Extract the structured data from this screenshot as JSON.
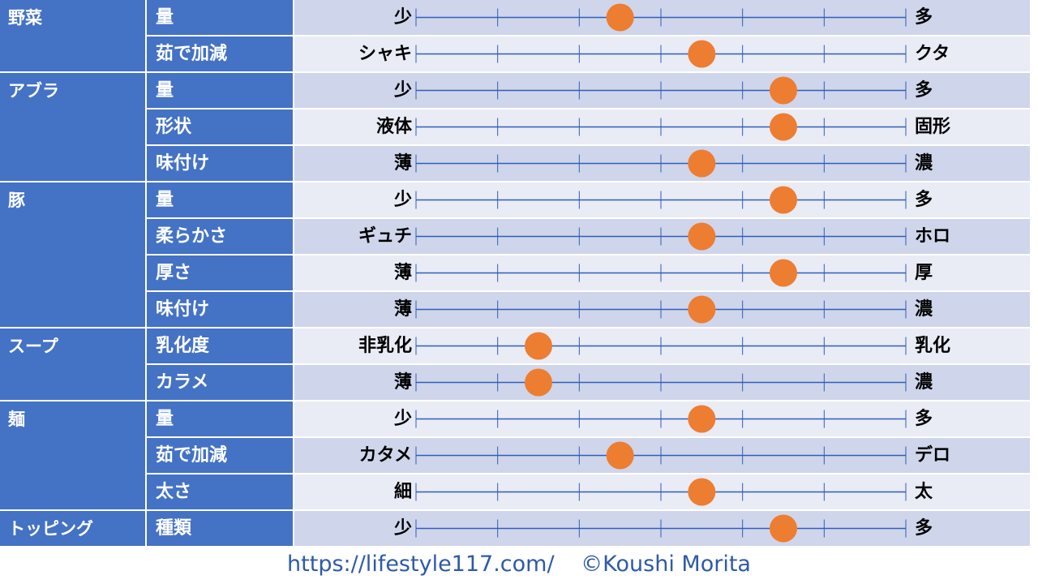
{
  "colors": {
    "header_bg": "#4472c4",
    "band_odd": "#cfd5ea",
    "band_even": "#e9ebf5",
    "line": "#2f5fb8",
    "dot": "#ed7d31",
    "footer_text": "#2e5aa8"
  },
  "chart_data": {
    "type": "scatter",
    "scale_steps": 6,
    "rows": [
      {
        "category": "野菜",
        "item": "量",
        "left": "少",
        "right": "多",
        "value": 2.5
      },
      {
        "category": "",
        "item": "茹で加減",
        "left": "シャキ",
        "right": "クタ",
        "value": 3.5
      },
      {
        "category": "アブラ",
        "item": "量",
        "left": "少",
        "right": "多",
        "value": 4.5
      },
      {
        "category": "",
        "item": "形状",
        "left": "液体",
        "right": "固形",
        "value": 4.5
      },
      {
        "category": "",
        "item": "味付け",
        "left": "薄",
        "right": "濃",
        "value": 3.5
      },
      {
        "category": "豚",
        "item": "量",
        "left": "少",
        "right": "多",
        "value": 4.5
      },
      {
        "category": "",
        "item": "柔らかさ",
        "left": "ギュチ",
        "right": "ホロ",
        "value": 3.5
      },
      {
        "category": "",
        "item": "厚さ",
        "left": "薄",
        "right": "厚",
        "value": 4.5
      },
      {
        "category": "",
        "item": "味付け",
        "left": "薄",
        "right": "濃",
        "value": 3.5
      },
      {
        "category": "スープ",
        "item": "乳化度",
        "left": "非乳化",
        "right": "乳化",
        "value": 1.5
      },
      {
        "category": "",
        "item": "カラメ",
        "left": "薄",
        "right": "濃",
        "value": 1.5
      },
      {
        "category": "麺",
        "item": "量",
        "left": "少",
        "right": "多",
        "value": 3.5
      },
      {
        "category": "",
        "item": "茹で加減",
        "left": "カタメ",
        "right": "デロ",
        "value": 2.5
      },
      {
        "category": "",
        "item": "太さ",
        "left": "細",
        "right": "太",
        "value": 3.5
      },
      {
        "category": "トッピング",
        "item": "種類",
        "left": "少",
        "right": "多",
        "value": 4.5
      }
    ]
  },
  "footer": {
    "url": "https://lifestyle117.com/",
    "copyright": "©Koushi Morita"
  }
}
